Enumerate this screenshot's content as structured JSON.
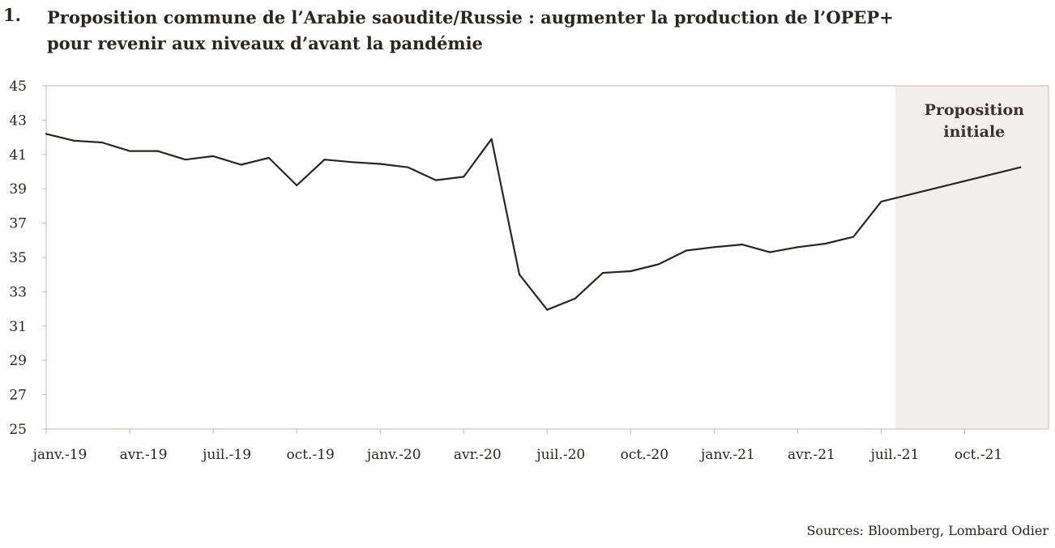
{
  "title": {
    "number": "1.",
    "line1": "Proposition commune de l’Arabie saoudite/Russie : augmenter la production de l’OPEP+",
    "line2": "pour revenir aux niveaux d’avant la pandémie"
  },
  "source": "Sources: Bloomberg, Lombard Odier",
  "colors": {
    "line": "#2b2523",
    "shade": "#f3efec",
    "axis": "#c9b8b3"
  },
  "chart_data": {
    "type": "line",
    "title": "Proposition commune de l’Arabie saoudite/Russie : augmenter la production de l’OPEP+ pour revenir aux niveaux d’avant la pandémie",
    "xlabel": "",
    "ylabel": "",
    "ylim": [
      25,
      45
    ],
    "yticks": [
      25,
      27,
      29,
      31,
      33,
      35,
      37,
      39,
      41,
      43,
      45
    ],
    "x_ticks": [
      "janv.-19",
      "avr.-19",
      "juil.-19",
      "oct.-19",
      "janv.-20",
      "avr.-20",
      "juil.-20",
      "oct.-20",
      "janv.-21",
      "avr.-21",
      "juil.-21",
      "oct.-21"
    ],
    "x": [
      "2019-01",
      "2019-02",
      "2019-03",
      "2019-04",
      "2019-05",
      "2019-06",
      "2019-07",
      "2019-08",
      "2019-09",
      "2019-10",
      "2019-11",
      "2019-12",
      "2020-01",
      "2020-02",
      "2020-03",
      "2020-04",
      "2020-05",
      "2020-06",
      "2020-07",
      "2020-08",
      "2020-09",
      "2020-10",
      "2020-11",
      "2020-12",
      "2021-01",
      "2021-02",
      "2021-03",
      "2021-04",
      "2021-05",
      "2021-06",
      "2021-07",
      "2021-12"
    ],
    "values": [
      42.2,
      41.8,
      41.7,
      41.2,
      41.2,
      40.7,
      40.9,
      40.4,
      40.8,
      39.2,
      40.7,
      40.55,
      40.45,
      40.25,
      39.5,
      39.7,
      41.9,
      34.0,
      31.95,
      32.6,
      34.1,
      34.2,
      34.6,
      35.4,
      35.6,
      35.75,
      35.3,
      35.6,
      35.8,
      36.2,
      38.25,
      40.25
    ],
    "shaded_region": {
      "label": [
        "Proposition",
        "initiale"
      ],
      "from": "2021-08",
      "to": "2021-12"
    },
    "grid": false,
    "legend": "none"
  }
}
